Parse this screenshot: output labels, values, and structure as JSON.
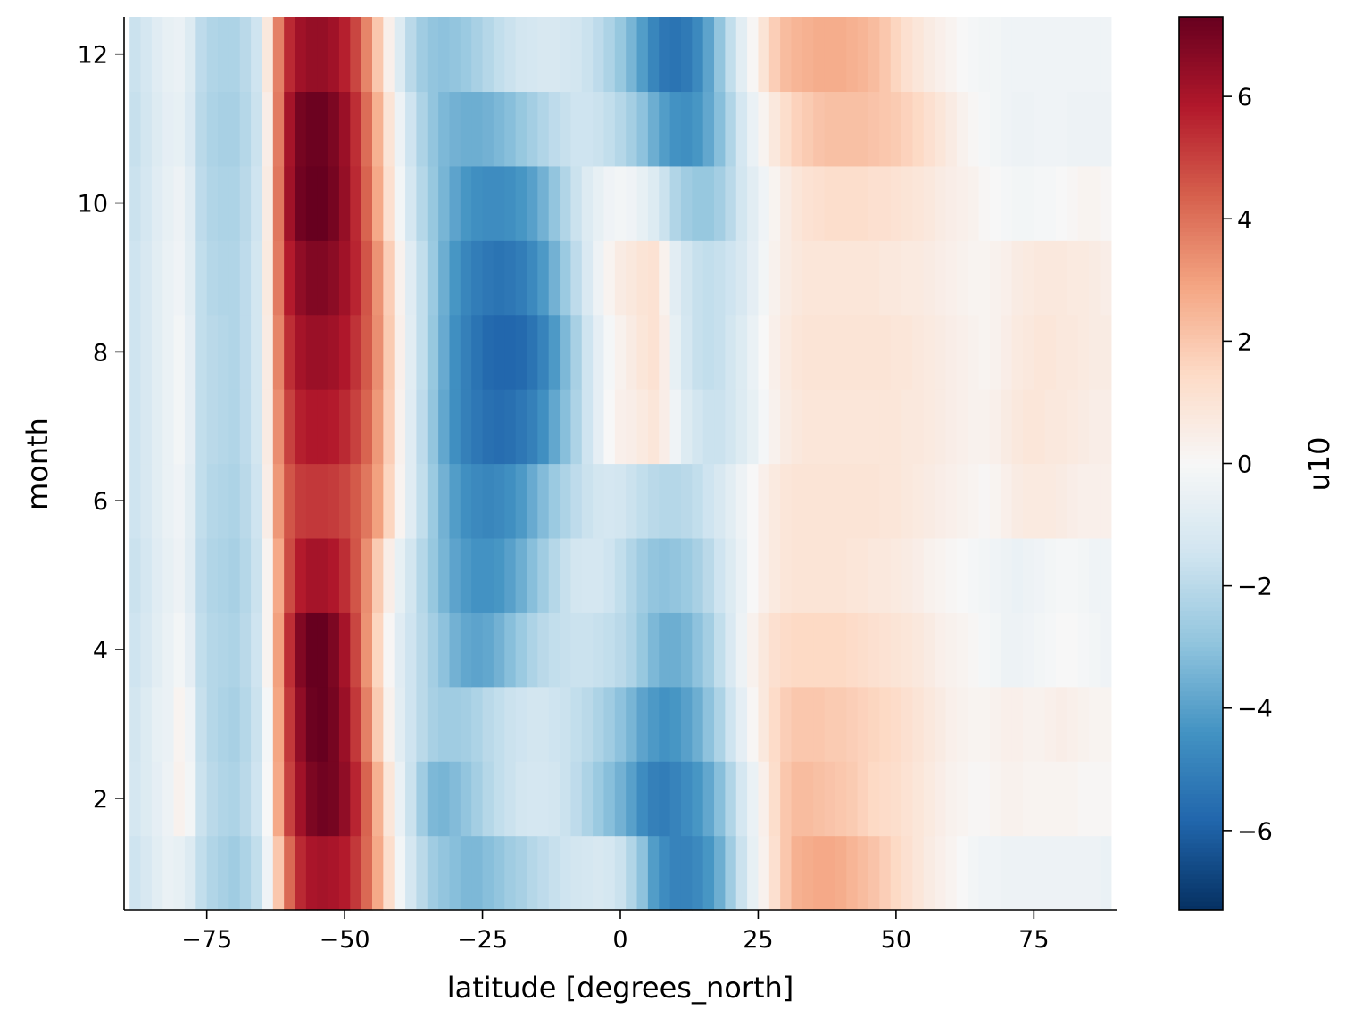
{
  "chart_data": {
    "type": "heatmap",
    "title": "",
    "xlabel": "latitude [degrees_north]",
    "ylabel": "month",
    "colorbar_label": "u10",
    "colormap": "RdBu_r",
    "vmin": -7.3,
    "vmax": 7.3,
    "xlim": [
      -90,
      90
    ],
    "ylim": [
      0.5,
      12.5
    ],
    "x_ticks": [
      -75,
      -50,
      -25,
      0,
      25,
      50,
      75
    ],
    "x_tick_labels": [
      "−75",
      "−50",
      "−25",
      "0",
      "25",
      "50",
      "75"
    ],
    "y_ticks": [
      2,
      4,
      6,
      8,
      10,
      12
    ],
    "y_tick_labels": [
      "2",
      "4",
      "6",
      "8",
      "10",
      "12"
    ],
    "colorbar_ticks": [
      -6,
      -4,
      -2,
      0,
      2,
      4,
      6
    ],
    "colorbar_tick_labels": [
      "−6",
      "−4",
      "−2",
      "0",
      "2",
      "4",
      "6"
    ],
    "latitudes": [
      -88,
      -86,
      -84,
      -82,
      -80,
      -78,
      -76,
      -74,
      -72,
      -70,
      -68,
      -66,
      -64,
      -62,
      -60,
      -58,
      -56,
      -54,
      -52,
      -50,
      -48,
      -46,
      -44,
      -42,
      -40,
      -38,
      -36,
      -34,
      -32,
      -30,
      -28,
      -26,
      -24,
      -22,
      -20,
      -18,
      -16,
      -14,
      -12,
      -10,
      -8,
      -6,
      -4,
      -2,
      0,
      2,
      4,
      6,
      8,
      10,
      12,
      14,
      16,
      18,
      20,
      22,
      24,
      26,
      28,
      30,
      32,
      34,
      36,
      38,
      40,
      42,
      44,
      46,
      48,
      50,
      52,
      54,
      56,
      58,
      60,
      62,
      64,
      66,
      68,
      70,
      72,
      74,
      76,
      78,
      80,
      82,
      84,
      86,
      88
    ],
    "months": [
      1,
      2,
      3,
      4,
      5,
      6,
      7,
      8,
      9,
      10,
      11,
      12
    ],
    "values": [
      [
        -1.5,
        -1.2,
        -0.8,
        -0.5,
        -0.6,
        -1.0,
        -1.8,
        -2.2,
        -2.4,
        -2.6,
        -2.3,
        -1.8,
        -0.3,
        2.0,
        4.2,
        5.5,
        6.0,
        6.1,
        6.0,
        5.8,
        5.2,
        4.2,
        2.8,
        1.3,
        -0.2,
        -1.3,
        -2.0,
        -2.6,
        -2.9,
        -3.1,
        -3.3,
        -3.3,
        -3.1,
        -2.9,
        -2.6,
        -2.4,
        -2.1,
        -1.9,
        -1.7,
        -1.5,
        -1.4,
        -1.3,
        -1.2,
        -1.3,
        -1.6,
        -2.2,
        -3.0,
        -4.1,
        -4.6,
        -4.9,
        -4.9,
        -4.7,
        -4.3,
        -3.6,
        -2.6,
        -1.6,
        -0.6,
        0.3,
        1.2,
        2.0,
        2.6,
        2.7,
        2.8,
        2.8,
        2.7,
        2.5,
        2.3,
        2.1,
        1.8,
        1.5,
        1.2,
        0.9,
        0.6,
        0.4,
        0.2,
        0.0,
        -0.2,
        -0.3,
        -0.3,
        -0.4,
        -0.4,
        -0.4,
        -0.4,
        -0.4,
        -0.4,
        -0.4,
        -0.4,
        -0.4,
        -0.5
      ],
      [
        -1.3,
        -1.0,
        -0.7,
        -0.4,
        0.3,
        -0.2,
        -1.6,
        -2.0,
        -2.2,
        -2.3,
        -2.0,
        -1.5,
        0.0,
        2.8,
        5.0,
        6.2,
        6.9,
        7.1,
        7.0,
        6.5,
        5.6,
        4.3,
        2.6,
        0.9,
        -0.5,
        -1.6,
        -2.6,
        -3.3,
        -3.4,
        -3.2,
        -2.9,
        -2.5,
        -2.1,
        -1.8,
        -1.6,
        -1.4,
        -1.3,
        -1.3,
        -1.4,
        -1.6,
        -1.9,
        -2.3,
        -2.7,
        -3.1,
        -3.5,
        -4.0,
        -4.6,
        -5.0,
        -5.1,
        -4.9,
        -4.6,
        -4.3,
        -3.8,
        -3.1,
        -2.2,
        -1.3,
        -0.5,
        0.4,
        1.3,
        2.0,
        2.3,
        2.3,
        2.2,
        2.1,
        2.0,
        1.9,
        1.7,
        1.5,
        1.4,
        1.3,
        1.1,
        0.9,
        0.7,
        0.5,
        0.3,
        0.2,
        0.1,
        0.1,
        0.2,
        0.3,
        0.3,
        0.2,
        0.2,
        0.2,
        0.2,
        0.2,
        0.1,
        0.1,
        0.1
      ],
      [
        -1.4,
        -1.0,
        -0.6,
        -0.5,
        0.2,
        -0.3,
        -1.7,
        -2.1,
        -2.3,
        -2.4,
        -2.1,
        -1.6,
        -0.1,
        2.9,
        5.2,
        6.5,
        7.2,
        7.3,
        7.0,
        6.3,
        5.2,
        3.7,
        1.9,
        0.3,
        -0.8,
        -1.5,
        -2.0,
        -2.4,
        -2.6,
        -2.6,
        -2.5,
        -2.3,
        -2.0,
        -1.8,
        -1.6,
        -1.5,
        -1.4,
        -1.4,
        -1.5,
        -1.6,
        -1.8,
        -2.0,
        -2.3,
        -2.6,
        -3.0,
        -3.4,
        -3.9,
        -4.2,
        -4.4,
        -4.3,
        -4.0,
        -3.6,
        -3.0,
        -2.3,
        -1.5,
        -0.7,
        0.1,
        0.8,
        1.4,
        1.8,
        2.0,
        2.0,
        2.0,
        1.9,
        1.9,
        1.8,
        1.7,
        1.6,
        1.5,
        1.4,
        1.2,
        1.0,
        0.8,
        0.6,
        0.4,
        0.3,
        0.2,
        0.2,
        0.3,
        0.4,
        0.4,
        0.3,
        0.3,
        0.4,
        0.5,
        0.4,
        0.3,
        0.2,
        0.2
      ],
      [
        -1.5,
        -1.2,
        -0.8,
        -0.5,
        -0.2,
        -0.7,
        -1.8,
        -2.1,
        -2.2,
        -2.3,
        -2.0,
        -1.5,
        0.2,
        3.0,
        5.4,
        6.8,
        7.3,
        7.3,
        6.9,
        6.1,
        4.9,
        3.3,
        1.6,
        0.1,
        -0.9,
        -1.5,
        -2.0,
        -2.5,
        -3.0,
        -3.5,
        -3.8,
        -3.9,
        -3.8,
        -3.5,
        -3.1,
        -2.7,
        -2.3,
        -2.0,
        -1.8,
        -1.7,
        -1.6,
        -1.6,
        -1.7,
        -1.8,
        -2.0,
        -2.3,
        -2.8,
        -3.3,
        -3.6,
        -3.6,
        -3.4,
        -3.0,
        -2.5,
        -1.8,
        -1.1,
        -0.4,
        0.3,
        0.8,
        1.2,
        1.4,
        1.5,
        1.5,
        1.5,
        1.5,
        1.5,
        1.4,
        1.3,
        1.2,
        1.1,
        1.0,
        0.9,
        0.8,
        0.6,
        0.4,
        0.3,
        0.2,
        0.1,
        -0.1,
        -0.2,
        -0.4,
        -0.4,
        -0.3,
        -0.2,
        -0.1,
        0.0,
        0.0,
        -0.1,
        -0.2,
        -0.3
      ],
      [
        -1.6,
        -1.3,
        -0.9,
        -0.6,
        -0.4,
        -0.9,
        -1.9,
        -2.2,
        -2.3,
        -2.4,
        -2.1,
        -1.6,
        0.2,
        2.8,
        4.8,
        5.8,
        6.1,
        6.1,
        5.9,
        5.4,
        4.6,
        3.4,
        1.9,
        0.5,
        -0.6,
        -1.4,
        -2.1,
        -2.8,
        -3.4,
        -3.9,
        -4.2,
        -4.4,
        -4.4,
        -4.3,
        -4.0,
        -3.6,
        -3.1,
        -2.6,
        -2.1,
        -1.7,
        -1.4,
        -1.3,
        -1.3,
        -1.5,
        -1.8,
        -2.2,
        -2.6,
        -2.9,
        -3.0,
        -2.9,
        -2.7,
        -2.4,
        -2.0,
        -1.5,
        -1.0,
        -0.5,
        0.0,
        0.4,
        0.7,
        0.9,
        1.0,
        1.0,
        1.0,
        1.0,
        1.0,
        0.9,
        0.9,
        0.8,
        0.8,
        0.7,
        0.6,
        0.5,
        0.3,
        0.2,
        0.1,
        0.0,
        -0.1,
        -0.2,
        -0.3,
        -0.4,
        -0.5,
        -0.4,
        -0.3,
        -0.2,
        -0.1,
        -0.1,
        -0.2,
        -0.3,
        -0.3
      ],
      [
        -1.5,
        -1.2,
        -0.8,
        -0.5,
        -0.3,
        -0.8,
        -1.8,
        -2.1,
        -2.2,
        -2.3,
        -2.0,
        -1.5,
        0.5,
        3.2,
        4.6,
        5.1,
        5.2,
        5.2,
        5.1,
        4.9,
        4.5,
        3.9,
        3.0,
        1.6,
        0.2,
        -0.9,
        -1.8,
        -2.7,
        -3.5,
        -4.1,
        -4.5,
        -4.7,
        -4.8,
        -4.7,
        -4.5,
        -4.2,
        -3.7,
        -3.2,
        -2.7,
        -2.3,
        -1.9,
        -1.6,
        -1.4,
        -1.3,
        -1.4,
        -1.6,
        -1.8,
        -2.0,
        -2.1,
        -2.1,
        -2.0,
        -1.8,
        -1.5,
        -1.2,
        -0.8,
        -0.4,
        0.0,
        0.4,
        0.7,
        0.9,
        1.0,
        1.0,
        1.0,
        1.0,
        1.0,
        1.0,
        1.0,
        1.0,
        0.9,
        0.9,
        0.8,
        0.7,
        0.6,
        0.5,
        0.4,
        0.3,
        0.2,
        0.1,
        0.2,
        0.4,
        0.6,
        0.7,
        0.7,
        0.7,
        0.6,
        0.5,
        0.4,
        0.4,
        0.4
      ],
      [
        -1.5,
        -1.2,
        -0.8,
        -0.5,
        -0.2,
        -0.7,
        -1.8,
        -2.0,
        -2.1,
        -2.2,
        -1.9,
        -1.4,
        0.6,
        3.4,
        5.0,
        5.7,
        5.9,
        5.9,
        5.8,
        5.5,
        5.0,
        4.3,
        3.2,
        1.8,
        0.3,
        -0.9,
        -1.9,
        -2.9,
        -3.8,
        -4.5,
        -5.0,
        -5.3,
        -5.5,
        -5.6,
        -5.5,
        -5.3,
        -5.0,
        -4.5,
        -3.8,
        -3.1,
        -2.3,
        -1.5,
        -0.7,
        0.0,
        0.4,
        0.5,
        0.7,
        0.9,
        0.5,
        -0.3,
        -1.0,
        -1.4,
        -1.6,
        -1.6,
        -1.4,
        -1.0,
        -0.6,
        -0.1,
        0.3,
        0.6,
        0.8,
        0.9,
        0.9,
        0.9,
        0.9,
        0.9,
        0.9,
        0.9,
        0.9,
        0.9,
        0.8,
        0.8,
        0.7,
        0.6,
        0.5,
        0.4,
        0.3,
        0.3,
        0.4,
        0.6,
        0.8,
        0.9,
        0.9,
        0.8,
        0.8,
        0.7,
        0.6,
        0.5,
        0.5
      ],
      [
        -1.5,
        -1.2,
        -0.8,
        -0.5,
        -0.2,
        -0.7,
        -1.8,
        -2.0,
        -2.1,
        -2.2,
        -1.9,
        -1.4,
        0.6,
        3.6,
        5.4,
        6.1,
        6.3,
        6.3,
        6.2,
        5.9,
        5.3,
        4.5,
        3.4,
        1.9,
        0.4,
        -0.8,
        -1.8,
        -2.8,
        -3.7,
        -4.5,
        -5.0,
        -5.4,
        -5.7,
        -5.8,
        -5.8,
        -5.7,
        -5.4,
        -4.9,
        -4.2,
        -3.3,
        -2.4,
        -1.5,
        -0.7,
        -0.1,
        0.3,
        0.6,
        0.9,
        1.1,
        0.5,
        -0.6,
        -1.3,
        -1.7,
        -1.8,
        -1.7,
        -1.4,
        -1.0,
        -0.5,
        0.0,
        0.4,
        0.7,
        0.9,
        1.0,
        1.0,
        1.0,
        1.0,
        1.0,
        1.0,
        1.0,
        1.0,
        0.9,
        0.9,
        0.8,
        0.7,
        0.6,
        0.5,
        0.4,
        0.3,
        0.2,
        0.3,
        0.5,
        0.7,
        0.8,
        0.9,
        0.9,
        0.8,
        0.8,
        0.7,
        0.6,
        0.6
      ],
      [
        -1.5,
        -1.2,
        -0.8,
        -0.5,
        -0.3,
        -0.8,
        -1.8,
        -2.1,
        -2.2,
        -2.2,
        -1.9,
        -1.4,
        0.7,
        3.8,
        5.8,
        6.5,
        6.8,
        6.8,
        6.6,
        6.2,
        5.6,
        4.6,
        3.3,
        1.8,
        0.3,
        -0.9,
        -1.8,
        -2.7,
        -3.6,
        -4.3,
        -4.8,
        -5.1,
        -5.3,
        -5.4,
        -5.3,
        -5.1,
        -4.7,
        -4.2,
        -3.5,
        -2.7,
        -1.9,
        -1.1,
        -0.4,
        0.2,
        0.6,
        0.8,
        1.0,
        1.1,
        0.3,
        -0.8,
        -1.4,
        -1.7,
        -1.8,
        -1.7,
        -1.5,
        -1.2,
        -0.7,
        -0.2,
        0.3,
        0.6,
        0.8,
        0.9,
        0.9,
        0.9,
        0.9,
        0.9,
        0.9,
        0.9,
        0.8,
        0.8,
        0.7,
        0.7,
        0.6,
        0.5,
        0.4,
        0.3,
        0.2,
        0.2,
        0.3,
        0.4,
        0.6,
        0.7,
        0.8,
        0.8,
        0.8,
        0.7,
        0.7,
        0.6,
        0.5
      ],
      [
        -1.6,
        -1.3,
        -0.9,
        -0.6,
        -0.4,
        -0.9,
        -1.9,
        -2.2,
        -2.3,
        -2.3,
        -2.0,
        -1.5,
        0.6,
        3.9,
        6.2,
        7.1,
        7.3,
        7.3,
        7.0,
        6.4,
        5.5,
        4.3,
        2.8,
        1.2,
        -0.2,
        -1.3,
        -2.1,
        -2.8,
        -3.4,
        -3.9,
        -4.3,
        -4.5,
        -4.6,
        -4.6,
        -4.5,
        -4.3,
        -4.0,
        -3.5,
        -2.9,
        -2.2,
        -1.6,
        -1.0,
        -0.6,
        -0.3,
        -0.2,
        -0.3,
        -0.6,
        -1.0,
        -1.6,
        -2.2,
        -2.6,
        -2.8,
        -2.8,
        -2.5,
        -2.0,
        -1.4,
        -0.8,
        -0.3,
        0.2,
        0.6,
        0.9,
        1.1,
        1.2,
        1.3,
        1.3,
        1.3,
        1.3,
        1.2,
        1.2,
        1.1,
        1.0,
        0.9,
        0.8,
        0.6,
        0.5,
        0.4,
        0.3,
        0.1,
        0.0,
        -0.1,
        -0.2,
        -0.2,
        -0.1,
        -0.1,
        0.0,
        0.1,
        0.2,
        0.2,
        0.1
      ],
      [
        -1.7,
        -1.4,
        -1.0,
        -0.7,
        -0.6,
        -1.1,
        -2.0,
        -2.3,
        -2.4,
        -2.4,
        -2.1,
        -1.6,
        0.5,
        3.8,
        6.1,
        7.0,
        7.2,
        7.2,
        6.9,
        6.3,
        5.4,
        4.1,
        2.6,
        1.0,
        -0.4,
        -1.5,
        -2.3,
        -2.9,
        -3.3,
        -3.5,
        -3.6,
        -3.6,
        -3.5,
        -3.3,
        -3.1,
        -2.8,
        -2.5,
        -2.2,
        -1.9,
        -1.7,
        -1.5,
        -1.5,
        -1.6,
        -1.8,
        -2.1,
        -2.5,
        -3.0,
        -3.6,
        -4.1,
        -4.4,
        -4.5,
        -4.3,
        -3.8,
        -3.1,
        -2.2,
        -1.3,
        -0.5,
        0.2,
        0.8,
        1.3,
        1.7,
        1.9,
        2.1,
        2.2,
        2.2,
        2.2,
        2.2,
        2.1,
        2.0,
        1.9,
        1.7,
        1.5,
        1.2,
        0.9,
        0.6,
        0.3,
        0.1,
        -0.1,
        -0.2,
        -0.3,
        -0.4,
        -0.4,
        -0.3,
        -0.3,
        -0.3,
        -0.4,
        -0.4,
        -0.4,
        -0.4
      ],
      [
        -1.6,
        -1.3,
        -0.9,
        -0.6,
        -0.5,
        -1.0,
        -1.9,
        -2.2,
        -2.3,
        -2.3,
        -2.0,
        -1.5,
        0.8,
        3.7,
        5.5,
        6.2,
        6.4,
        6.4,
        6.2,
        5.7,
        4.9,
        3.6,
        2.0,
        0.4,
        -1.0,
        -2.0,
        -2.6,
        -2.9,
        -3.0,
        -2.9,
        -2.7,
        -2.4,
        -2.1,
        -1.8,
        -1.6,
        -1.4,
        -1.3,
        -1.2,
        -1.2,
        -1.3,
        -1.4,
        -1.6,
        -1.9,
        -2.3,
        -2.8,
        -3.4,
        -4.1,
        -4.8,
        -5.3,
        -5.4,
        -5.2,
        -4.7,
        -3.9,
        -2.9,
        -1.8,
        -0.8,
        0.1,
        1.0,
        1.8,
        2.3,
        2.5,
        2.6,
        2.7,
        2.7,
        2.7,
        2.6,
        2.5,
        2.3,
        2.0,
        1.6,
        1.2,
        0.9,
        0.6,
        0.4,
        0.2,
        0.0,
        -0.1,
        -0.2,
        -0.2,
        -0.3,
        -0.3,
        -0.3,
        -0.3,
        -0.3,
        -0.3,
        -0.3,
        -0.3,
        -0.3,
        -0.3
      ]
    ]
  }
}
